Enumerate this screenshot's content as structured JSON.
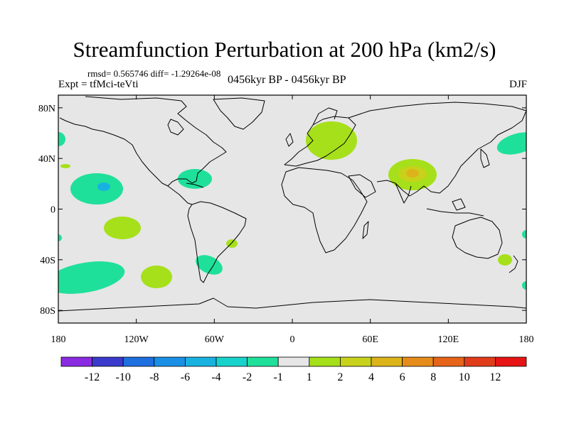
{
  "title": "Streamfunction Perturbation at 200 hPa (km2/s)",
  "stats": "rmsd= 0.565746 diff= -1.29264e-08",
  "expt": "Expt = tfMci-teVti",
  "period": "0456kyr BP - 0456kyr BP",
  "season": "DJF",
  "lon_ticks": [
    "180",
    "120W",
    "60W",
    "0",
    "60E",
    "120E",
    "180"
  ],
  "lat_ticks": [
    "80N",
    "40N",
    "0",
    "40S",
    "80S"
  ],
  "colorbar": {
    "colors": [
      "#8a2be2",
      "#3a3acd",
      "#1e6fe0",
      "#1a8fe6",
      "#19b2e0",
      "#18d2cc",
      "#1fe09a",
      "#e6e6e6",
      "#a6e01a",
      "#c8d21a",
      "#dcb41a",
      "#e68c1a",
      "#e6641a",
      "#e03c1a",
      "#e61414"
    ],
    "labels": [
      "-12",
      "-10",
      "-8",
      "-6",
      "-4",
      "-2",
      "-1",
      "1",
      "2",
      "4",
      "6",
      "8",
      "10",
      "12"
    ]
  },
  "colors": {
    "background": "#e6e6e6",
    "plus1": "#a6e01a",
    "plus2": "#c8d21a",
    "plus4": "#dcb41a",
    "minus1": "#1fe09a",
    "minus2": "#18d2cc",
    "minus4": "#19b2e0"
  }
}
